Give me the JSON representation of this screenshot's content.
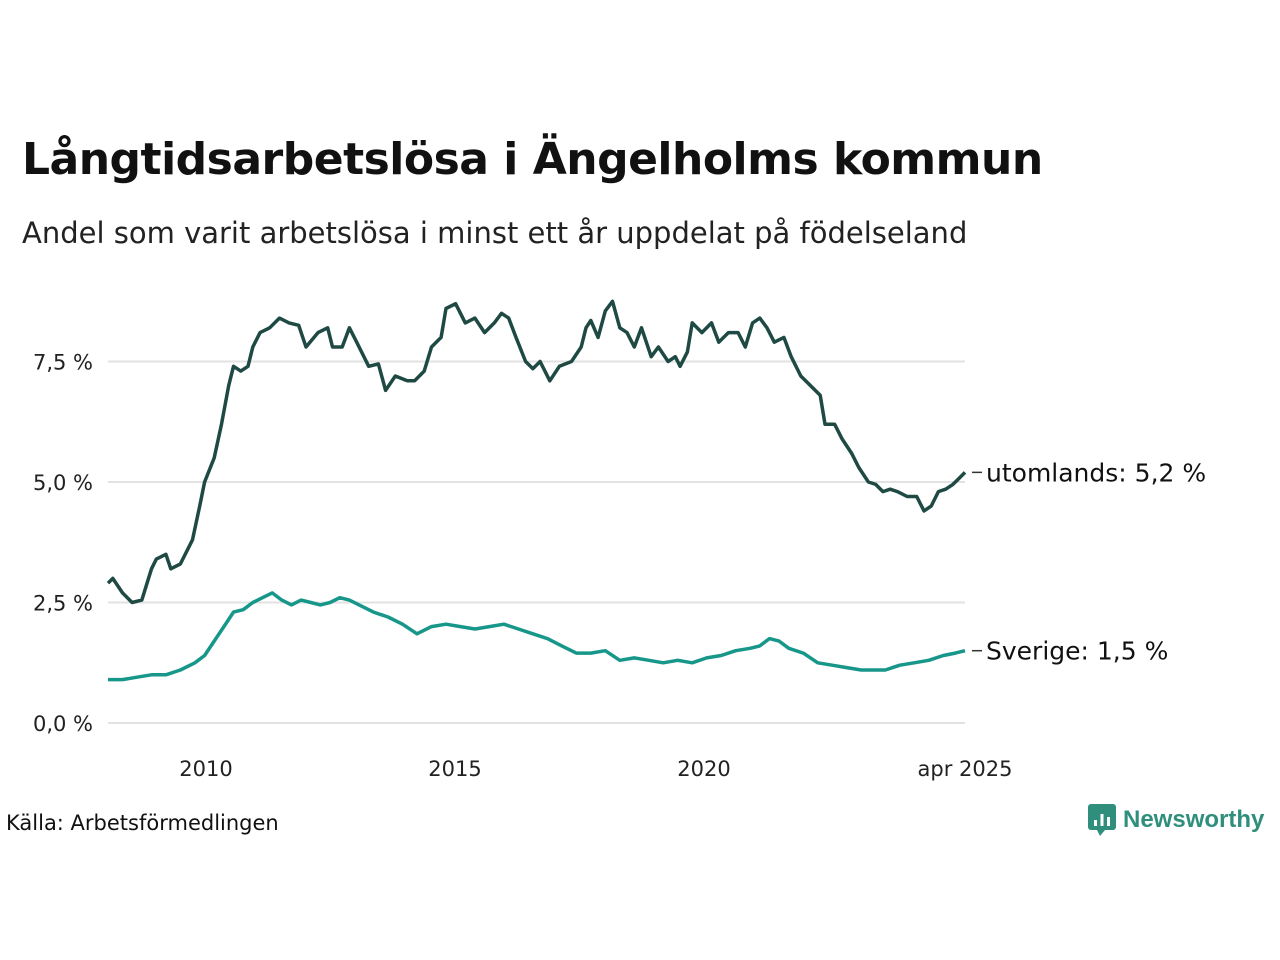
{
  "title": "Långtidsarbetslösa i Ängelholms kommun",
  "subtitle": "Andel som varit arbetslösa i minst ett år uppdelat på födelseland",
  "source": "Källa: Arbetsförmedlingen",
  "brand": "Newsworthy",
  "colors": {
    "utomlands": "#1f4a44",
    "sverige": "#17968a",
    "grid": "#e2e2e2",
    "brand": "#2f8f7c"
  },
  "chart_data": {
    "type": "line",
    "x_start": "2008-01",
    "x_end": "2025-04",
    "x_unit": "year",
    "xticks": [
      {
        "x": 2010.0,
        "label": "2010"
      },
      {
        "x": 2015.0,
        "label": "2015"
      },
      {
        "x": 2020.0,
        "label": "2020"
      },
      {
        "x": 2025.25,
        "label": "apr 2025"
      }
    ],
    "yticks": [
      {
        "y": 0,
        "label": "0,0 %"
      },
      {
        "y": 2.5,
        "label": "2,5 %"
      },
      {
        "y": 5,
        "label": "5,0 %"
      },
      {
        "y": 7.5,
        "label": "7,5 %"
      }
    ],
    "xlim": [
      2008.0,
      2025.25
    ],
    "ylim": [
      0,
      8.8
    ],
    "grid": true,
    "series": [
      {
        "name": "utomlands",
        "end_label": "utomlands: 5,2 %",
        "points": [
          [
            2008.0,
            2.9
          ],
          [
            2008.1,
            3.0
          ],
          [
            2008.3,
            2.7
          ],
          [
            2008.5,
            2.5
          ],
          [
            2008.7,
            2.55
          ],
          [
            2008.9,
            3.2
          ],
          [
            2009.0,
            3.4
          ],
          [
            2009.2,
            3.5
          ],
          [
            2009.3,
            3.2
          ],
          [
            2009.5,
            3.3
          ],
          [
            2009.75,
            3.8
          ],
          [
            2009.9,
            4.5
          ],
          [
            2010.0,
            5.0
          ],
          [
            2010.2,
            5.5
          ],
          [
            2010.35,
            6.2
          ],
          [
            2010.5,
            7.0
          ],
          [
            2010.6,
            7.4
          ],
          [
            2010.75,
            7.3
          ],
          [
            2010.9,
            7.4
          ],
          [
            2011.0,
            7.8
          ],
          [
            2011.15,
            8.1
          ],
          [
            2011.35,
            8.2
          ],
          [
            2011.55,
            8.4
          ],
          [
            2011.75,
            8.3
          ],
          [
            2011.95,
            8.25
          ],
          [
            2012.1,
            7.8
          ],
          [
            2012.35,
            8.1
          ],
          [
            2012.55,
            8.2
          ],
          [
            2012.65,
            7.8
          ],
          [
            2012.85,
            7.8
          ],
          [
            2013.0,
            8.2
          ],
          [
            2013.15,
            7.9
          ],
          [
            2013.4,
            7.4
          ],
          [
            2013.6,
            7.45
          ],
          [
            2013.75,
            6.9
          ],
          [
            2013.95,
            7.2
          ],
          [
            2014.2,
            7.1
          ],
          [
            2014.35,
            7.1
          ],
          [
            2014.55,
            7.3
          ],
          [
            2014.7,
            7.8
          ],
          [
            2014.9,
            8.0
          ],
          [
            2015.0,
            8.6
          ],
          [
            2015.2,
            8.7
          ],
          [
            2015.4,
            8.3
          ],
          [
            2015.6,
            8.4
          ],
          [
            2015.8,
            8.1
          ],
          [
            2016.0,
            8.3
          ],
          [
            2016.15,
            8.5
          ],
          [
            2016.3,
            8.4
          ],
          [
            2016.45,
            8.0
          ],
          [
            2016.65,
            7.5
          ],
          [
            2016.8,
            7.35
          ],
          [
            2016.95,
            7.5
          ],
          [
            2017.15,
            7.1
          ],
          [
            2017.35,
            7.4
          ],
          [
            2017.6,
            7.5
          ],
          [
            2017.8,
            7.8
          ],
          [
            2017.9,
            8.2
          ],
          [
            2018.0,
            8.35
          ],
          [
            2018.15,
            8.0
          ],
          [
            2018.3,
            8.55
          ],
          [
            2018.45,
            8.75
          ],
          [
            2018.6,
            8.2
          ],
          [
            2018.75,
            8.1
          ],
          [
            2018.9,
            7.8
          ],
          [
            2019.05,
            8.2
          ],
          [
            2019.25,
            7.6
          ],
          [
            2019.4,
            7.8
          ],
          [
            2019.6,
            7.5
          ],
          [
            2019.75,
            7.6
          ],
          [
            2019.85,
            7.4
          ],
          [
            2020.0,
            7.7
          ],
          [
            2020.1,
            8.3
          ],
          [
            2020.3,
            8.1
          ],
          [
            2020.5,
            8.3
          ],
          [
            2020.65,
            7.9
          ],
          [
            2020.85,
            8.1
          ],
          [
            2021.05,
            8.1
          ],
          [
            2021.2,
            7.8
          ],
          [
            2021.35,
            8.3
          ],
          [
            2021.5,
            8.4
          ],
          [
            2021.65,
            8.2
          ],
          [
            2021.8,
            7.9
          ],
          [
            2022.0,
            8.0
          ],
          [
            2022.15,
            7.6
          ],
          [
            2022.35,
            7.2
          ],
          [
            2022.55,
            7.0
          ],
          [
            2022.75,
            6.8
          ],
          [
            2022.85,
            6.2
          ],
          [
            2023.05,
            6.2
          ],
          [
            2023.2,
            5.9
          ],
          [
            2023.4,
            5.6
          ],
          [
            2023.55,
            5.3
          ],
          [
            2023.75,
            5.0
          ],
          [
            2023.9,
            4.95
          ],
          [
            2024.05,
            4.8
          ],
          [
            2024.2,
            4.85
          ],
          [
            2024.35,
            4.8
          ],
          [
            2024.55,
            4.7
          ],
          [
            2024.75,
            4.7
          ],
          [
            2024.9,
            4.4
          ],
          [
            2025.05,
            4.5
          ],
          [
            2025.2,
            4.8
          ],
          [
            2025.35,
            4.85
          ],
          [
            2025.5,
            4.95
          ],
          [
            2025.6,
            5.05
          ],
          [
            2025.75,
            5.2
          ]
        ]
      },
      {
        "name": "Sverige",
        "end_label": "Sverige: 1,5 %",
        "points": [
          [
            2008.0,
            0.9
          ],
          [
            2008.3,
            0.9
          ],
          [
            2008.6,
            0.95
          ],
          [
            2008.9,
            1.0
          ],
          [
            2009.2,
            1.0
          ],
          [
            2009.5,
            1.1
          ],
          [
            2009.8,
            1.25
          ],
          [
            2010.0,
            1.4
          ],
          [
            2010.2,
            1.7
          ],
          [
            2010.4,
            2.0
          ],
          [
            2010.6,
            2.3
          ],
          [
            2010.8,
            2.35
          ],
          [
            2011.0,
            2.5
          ],
          [
            2011.2,
            2.6
          ],
          [
            2011.4,
            2.7
          ],
          [
            2011.6,
            2.55
          ],
          [
            2011.8,
            2.45
          ],
          [
            2012.0,
            2.55
          ],
          [
            2012.2,
            2.5
          ],
          [
            2012.4,
            2.45
          ],
          [
            2012.6,
            2.5
          ],
          [
            2012.8,
            2.6
          ],
          [
            2013.0,
            2.55
          ],
          [
            2013.2,
            2.45
          ],
          [
            2013.5,
            2.3
          ],
          [
            2013.8,
            2.2
          ],
          [
            2014.1,
            2.05
          ],
          [
            2014.4,
            1.85
          ],
          [
            2014.7,
            2.0
          ],
          [
            2015.0,
            2.05
          ],
          [
            2015.3,
            2.0
          ],
          [
            2015.6,
            1.95
          ],
          [
            2015.9,
            2.0
          ],
          [
            2016.2,
            2.05
          ],
          [
            2016.5,
            1.95
          ],
          [
            2016.8,
            1.85
          ],
          [
            2017.1,
            1.75
          ],
          [
            2017.4,
            1.6
          ],
          [
            2017.7,
            1.45
          ],
          [
            2018.0,
            1.45
          ],
          [
            2018.3,
            1.5
          ],
          [
            2018.6,
            1.3
          ],
          [
            2018.9,
            1.35
          ],
          [
            2019.2,
            1.3
          ],
          [
            2019.5,
            1.25
          ],
          [
            2019.8,
            1.3
          ],
          [
            2020.1,
            1.25
          ],
          [
            2020.4,
            1.35
          ],
          [
            2020.7,
            1.4
          ],
          [
            2021.0,
            1.5
          ],
          [
            2021.3,
            1.55
          ],
          [
            2021.5,
            1.6
          ],
          [
            2021.7,
            1.75
          ],
          [
            2021.9,
            1.7
          ],
          [
            2022.1,
            1.55
          ],
          [
            2022.4,
            1.45
          ],
          [
            2022.7,
            1.25
          ],
          [
            2023.0,
            1.2
          ],
          [
            2023.3,
            1.15
          ],
          [
            2023.6,
            1.1
          ],
          [
            2023.9,
            1.1
          ],
          [
            2024.1,
            1.1
          ],
          [
            2024.4,
            1.2
          ],
          [
            2024.7,
            1.25
          ],
          [
            2025.0,
            1.3
          ],
          [
            2025.3,
            1.4
          ],
          [
            2025.55,
            1.45
          ],
          [
            2025.75,
            1.5
          ]
        ]
      }
    ]
  }
}
